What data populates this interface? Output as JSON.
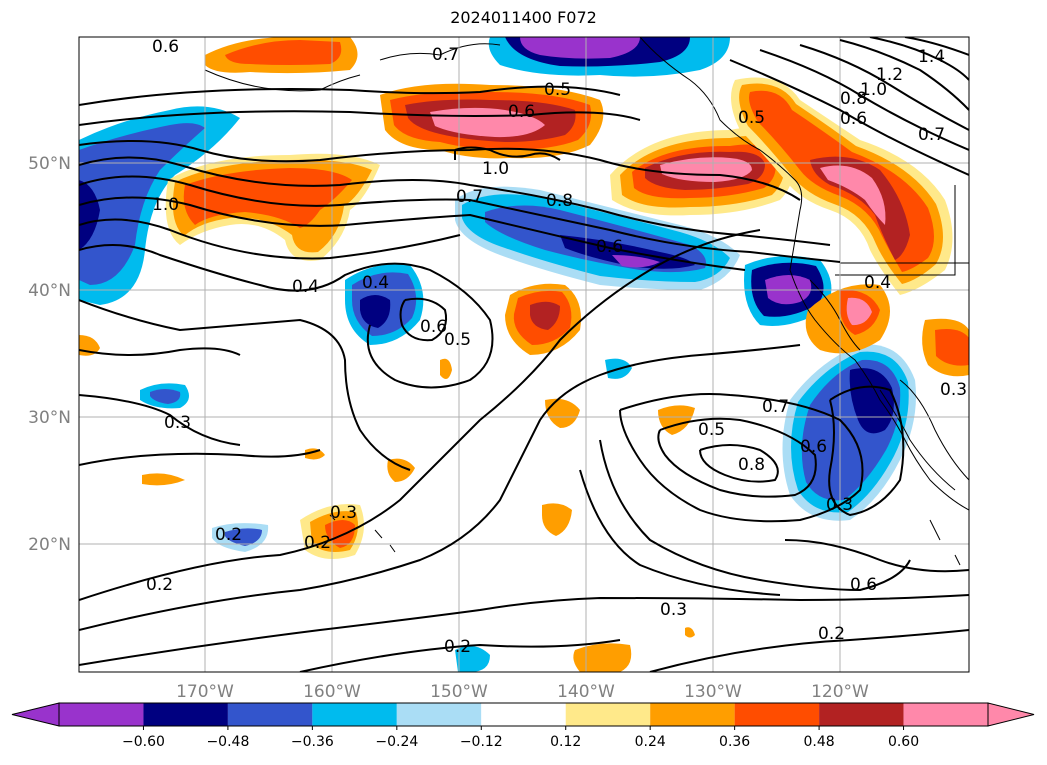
{
  "title": "2024011400 F072",
  "lat_labels": [
    "50°N",
    "40°N",
    "30°N",
    "20°N"
  ],
  "lon_labels": [
    "170°W",
    "160°W",
    "150°W",
    "140°W",
    "130°W",
    "120°W"
  ],
  "contour_labels": [
    "0.6",
    "0.7",
    "0.5",
    "0.6",
    "1.2",
    "1.0",
    "0.8",
    "0.6",
    "0.7",
    "0.5",
    "1.4",
    "1.0",
    "1.0",
    "0.7",
    "0.8",
    "0.6",
    "0.4",
    "0.4",
    "0.4",
    "0.6",
    "0.5",
    "0.3",
    "0.3",
    "0.5",
    "0.7",
    "0.8",
    "0.6",
    "0.3",
    "0.2",
    "0.2",
    "0.2",
    "0.6",
    "0.3",
    "0.2",
    "0.2",
    "0.3"
  ],
  "colorbar": {
    "ticks": [
      "−0.60",
      "−0.48",
      "−0.36",
      "−0.24",
      "−0.12",
      "0.12",
      "0.24",
      "0.36",
      "0.48",
      "0.60"
    ],
    "colors": [
      "#9933cc",
      "#000080",
      "#3355cc",
      "#00bbee",
      "#aaddf5",
      "#ffffff",
      "#ffe98a",
      "#ff9e00",
      "#ff4d00",
      "#b22222",
      "#ff88aa",
      "#ff88aa"
    ],
    "extend": "both"
  },
  "style": {
    "land_outline": "#000000",
    "grid": "#b0b0b0",
    "axis_label": "#808080"
  }
}
